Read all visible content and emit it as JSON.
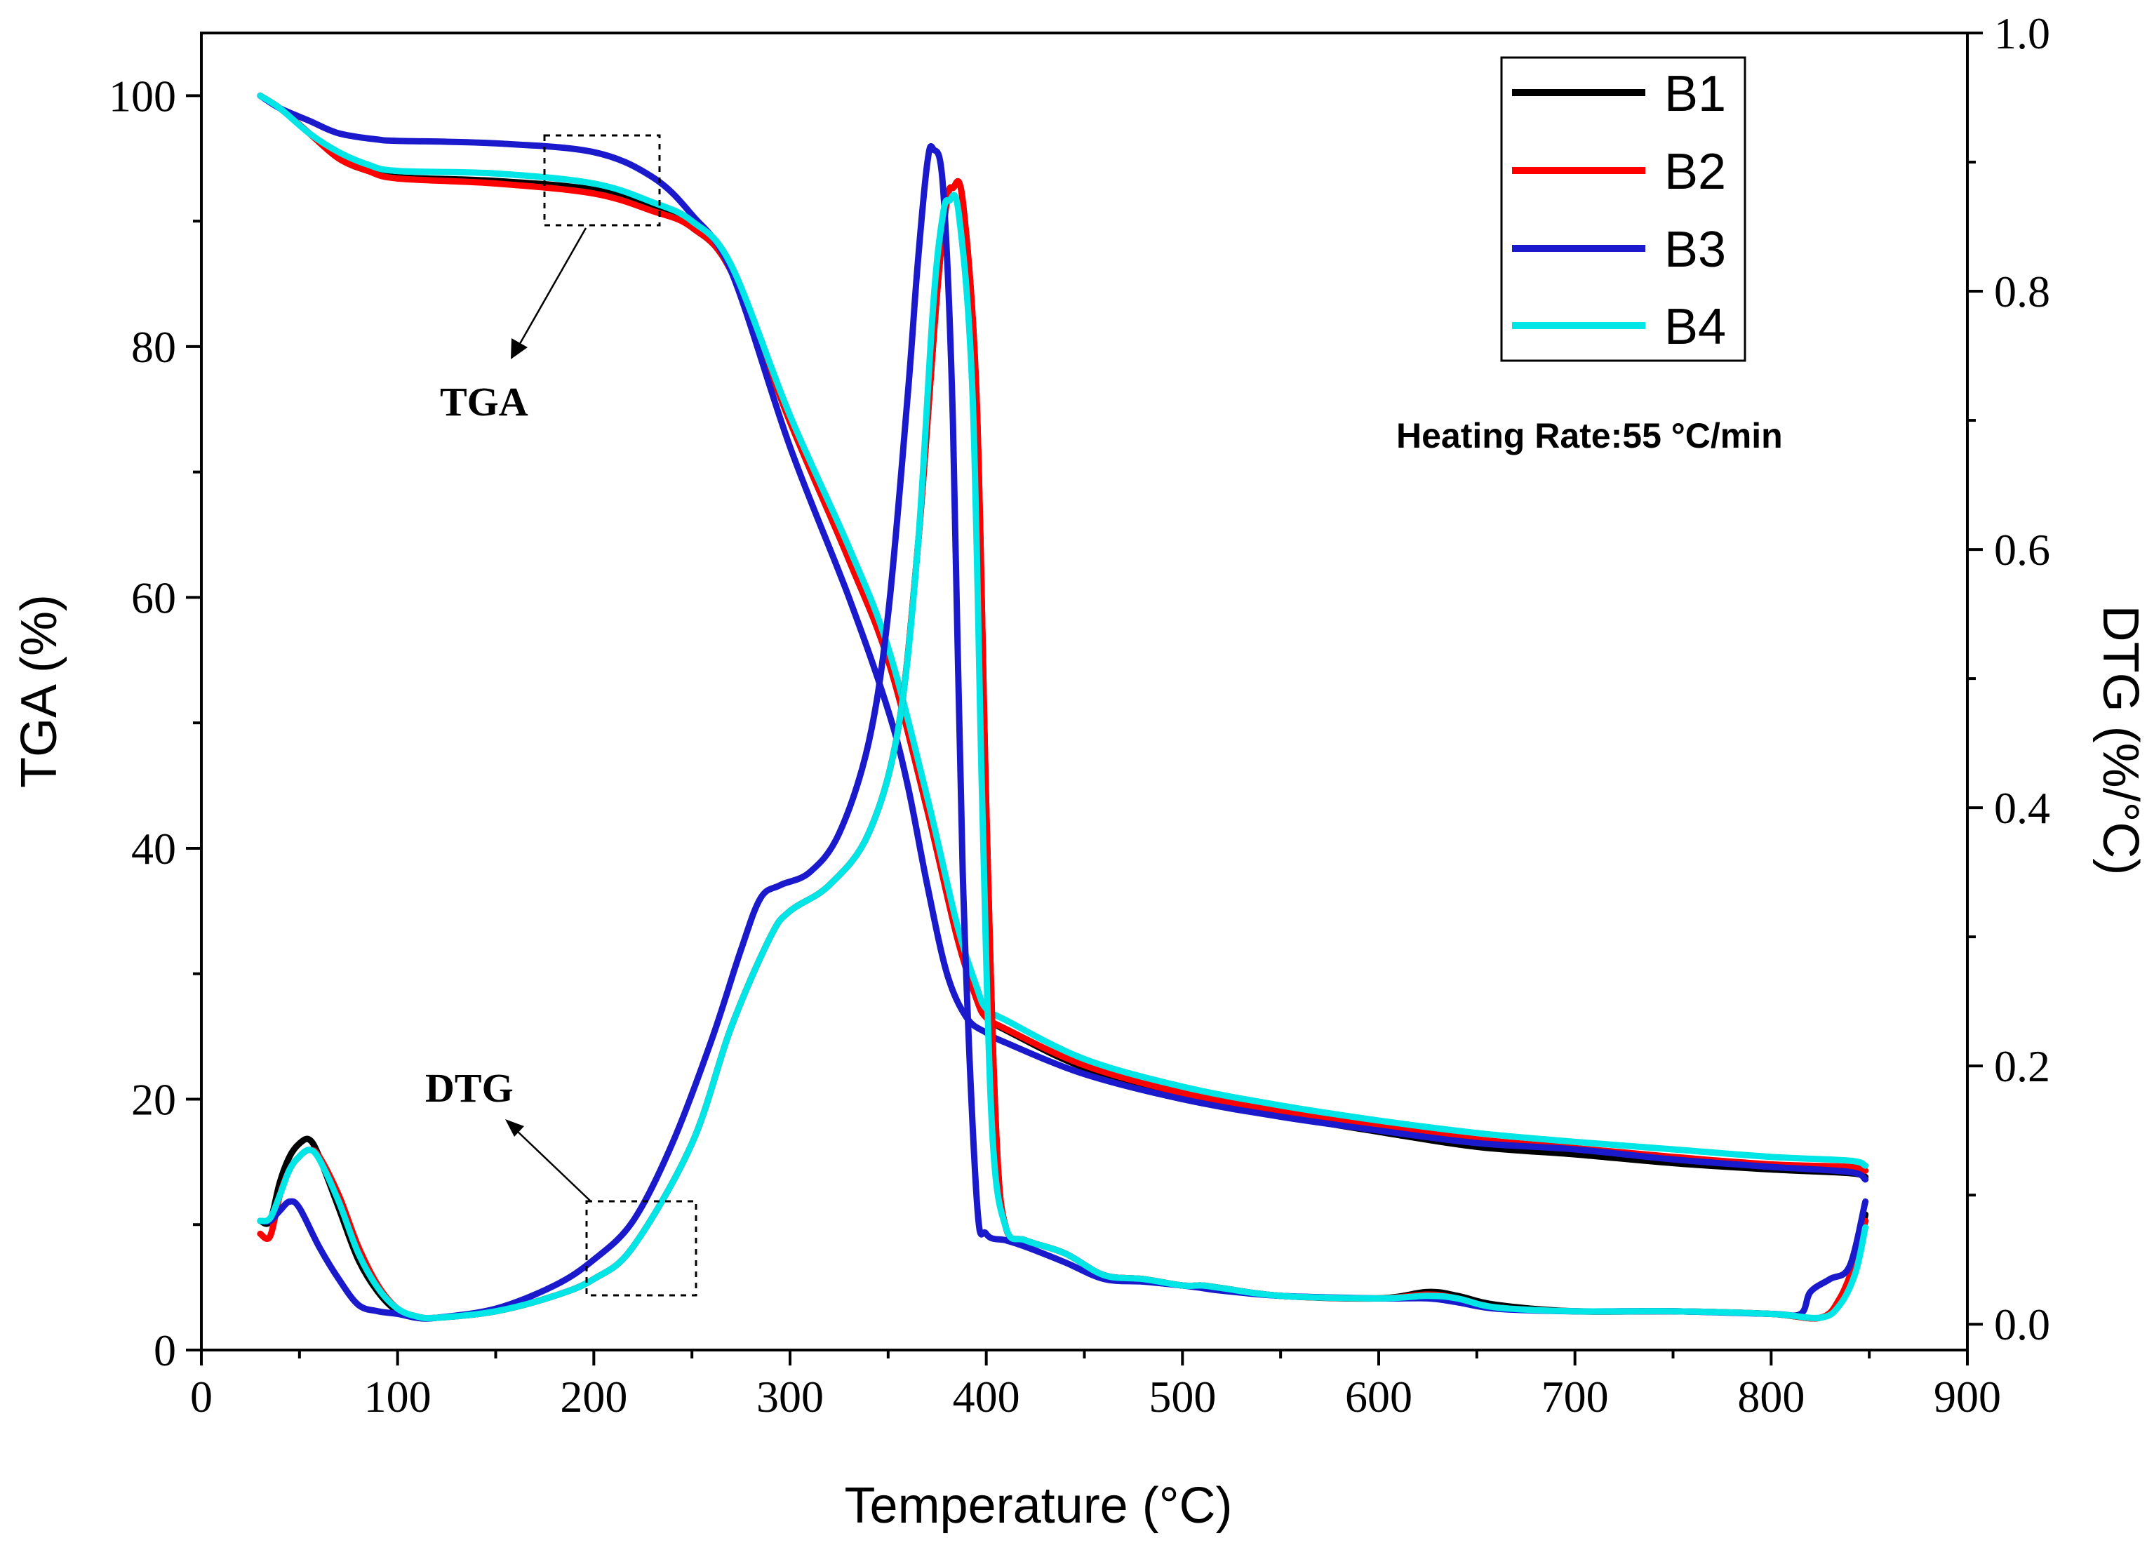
{
  "chart_data": {
    "type": "line",
    "title": "",
    "xlabel": "Temperature (°C)",
    "ylabel": "TGA (%)",
    "y2label": "DTG (%/°C)",
    "xlim": [
      0,
      900
    ],
    "ylim": [
      0,
      105
    ],
    "y2lim": [
      -0.02,
      1.0
    ],
    "x_ticks": [
      0,
      100,
      200,
      300,
      400,
      500,
      600,
      700,
      800,
      900
    ],
    "y_ticks": [
      0,
      20,
      40,
      60,
      80,
      100
    ],
    "y2_ticks": [
      "0.0",
      "0.2",
      "0.4",
      "0.6",
      "0.8",
      "1.0"
    ],
    "legend": [
      "B1",
      "B2",
      "B3",
      "B4"
    ],
    "legend_position": "top-right",
    "annotation_heating_rate": "Heating Rate:55 °C/min",
    "annotation_tga": "TGA",
    "annotation_dtg": "DTG",
    "colors": {
      "B1": "#000000",
      "B2": "#ff0000",
      "B3": "#1a1acc",
      "B4": "#00e5e5"
    },
    "series": [
      {
        "name": "B1",
        "curve": "TGA",
        "axis": "left",
        "x": [
          30,
          40,
          55,
          70,
          85,
          100,
          150,
          200,
          230,
          250,
          270,
          300,
          330,
          350,
          370,
          385,
          395,
          400,
          410,
          450,
          500,
          550,
          600,
          650,
          700,
          750,
          800,
          840,
          848
        ],
        "y": [
          100,
          99,
          97,
          95,
          94,
          93.5,
          93.2,
          92.5,
          91,
          89.5,
          86,
          74,
          63,
          55,
          43,
          33,
          28,
          26.5,
          25.5,
          22.5,
          20.2,
          18.7,
          17.4,
          16.2,
          15.6,
          14.9,
          14.4,
          14.1,
          13.8
        ]
      },
      {
        "name": "B2",
        "curve": "TGA",
        "axis": "left",
        "x": [
          30,
          40,
          55,
          70,
          85,
          100,
          150,
          200,
          230,
          250,
          270,
          300,
          330,
          350,
          370,
          385,
          395,
          400,
          410,
          450,
          500,
          550,
          600,
          650,
          700,
          750,
          800,
          840,
          848
        ],
        "y": [
          100,
          99,
          97,
          95,
          94,
          93.4,
          93,
          92.2,
          90.8,
          89.5,
          86,
          74,
          63,
          55,
          43,
          33,
          28,
          26.5,
          25.6,
          22.7,
          20.5,
          19.1,
          17.9,
          16.8,
          16.1,
          15.4,
          14.8,
          14.6,
          14.3
        ]
      },
      {
        "name": "B3",
        "curve": "TGA",
        "axis": "left",
        "x": [
          30,
          40,
          55,
          70,
          90,
          100,
          150,
          200,
          230,
          250,
          270,
          300,
          330,
          350,
          360,
          370,
          380,
          390,
          400,
          410,
          450,
          500,
          550,
          600,
          650,
          700,
          750,
          800,
          840,
          848
        ],
        "y": [
          100,
          99,
          98,
          97,
          96.5,
          96.4,
          96.2,
          95.5,
          93.5,
          90.5,
          86,
          72,
          60,
          51,
          45,
          37,
          30,
          26.5,
          25.3,
          24.5,
          22,
          20,
          18.6,
          17.5,
          16.5,
          16,
          15.2,
          14.6,
          14.2,
          13.6
        ]
      },
      {
        "name": "B4",
        "curve": "TGA",
        "axis": "left",
        "x": [
          30,
          40,
          55,
          70,
          85,
          100,
          150,
          200,
          230,
          250,
          270,
          300,
          330,
          350,
          370,
          385,
          395,
          400,
          410,
          450,
          500,
          550,
          600,
          650,
          700,
          750,
          800,
          840,
          848
        ],
        "y": [
          100,
          99,
          97,
          95.5,
          94.5,
          94,
          93.8,
          93,
          91.5,
          90,
          86.5,
          74.5,
          64,
          56,
          44,
          34,
          29,
          27.2,
          26.3,
          23.2,
          21,
          19.5,
          18.3,
          17.3,
          16.6,
          16,
          15.4,
          15.1,
          14.7
        ]
      },
      {
        "name": "B1",
        "curve": "DTG",
        "axis": "right",
        "x": [
          30,
          35,
          40,
          45,
          50,
          55,
          60,
          70,
          80,
          90,
          100,
          110,
          120,
          150,
          180,
          200,
          220,
          250,
          270,
          290,
          300,
          320,
          340,
          355,
          365,
          375,
          380,
          383,
          388,
          395,
          400,
          405,
          410,
          420,
          440,
          460,
          480,
          500,
          510,
          520,
          550,
          600,
          625,
          640,
          660,
          700,
          750,
          800,
          825,
          835,
          843,
          848
        ],
        "y": [
          0.08,
          0.08,
          0.11,
          0.13,
          0.14,
          0.143,
          0.13,
          0.09,
          0.05,
          0.025,
          0.01,
          0.005,
          0.005,
          0.01,
          0.022,
          0.035,
          0.06,
          0.14,
          0.23,
          0.3,
          0.32,
          0.34,
          0.38,
          0.46,
          0.6,
          0.8,
          0.87,
          0.88,
          0.87,
          0.72,
          0.4,
          0.15,
          0.075,
          0.065,
          0.055,
          0.038,
          0.035,
          0.03,
          0.03,
          0.028,
          0.022,
          0.02,
          0.025,
          0.022,
          0.015,
          0.01,
          0.01,
          0.008,
          0.005,
          0.02,
          0.05,
          0.085
        ]
      },
      {
        "name": "B2",
        "curve": "DTG",
        "axis": "right",
        "x": [
          30,
          35,
          40,
          45,
          50,
          55,
          60,
          70,
          80,
          90,
          100,
          110,
          120,
          150,
          180,
          200,
          220,
          250,
          270,
          290,
          300,
          320,
          340,
          355,
          365,
          375,
          380,
          383,
          388,
          395,
          400,
          405,
          410,
          420,
          440,
          460,
          480,
          500,
          510,
          520,
          550,
          600,
          625,
          640,
          660,
          700,
          750,
          800,
          825,
          835,
          843,
          848
        ],
        "y": [
          0.07,
          0.068,
          0.1,
          0.12,
          0.13,
          0.135,
          0.13,
          0.1,
          0.06,
          0.03,
          0.012,
          0.006,
          0.005,
          0.01,
          0.022,
          0.035,
          0.06,
          0.14,
          0.23,
          0.3,
          0.32,
          0.34,
          0.38,
          0.46,
          0.6,
          0.8,
          0.87,
          0.88,
          0.87,
          0.72,
          0.4,
          0.15,
          0.075,
          0.065,
          0.055,
          0.038,
          0.035,
          0.03,
          0.03,
          0.028,
          0.022,
          0.02,
          0.023,
          0.02,
          0.013,
          0.01,
          0.01,
          0.008,
          0.005,
          0.02,
          0.05,
          0.08
        ]
      },
      {
        "name": "B3",
        "curve": "DTG",
        "axis": "right",
        "x": [
          30,
          35,
          40,
          45,
          50,
          60,
          70,
          80,
          90,
          100,
          110,
          120,
          150,
          180,
          200,
          220,
          240,
          260,
          275,
          285,
          295,
          310,
          325,
          340,
          350,
          360,
          365,
          370,
          373,
          378,
          383,
          388,
          395,
          400,
          410,
          420,
          440,
          460,
          480,
          500,
          510,
          520,
          550,
          600,
          625,
          640,
          660,
          700,
          750,
          800,
          815,
          820,
          830,
          840,
          848
        ],
        "y": [
          0.08,
          0.08,
          0.088,
          0.095,
          0.09,
          0.06,
          0.035,
          0.015,
          0.01,
          0.008,
          0.005,
          0.005,
          0.012,
          0.03,
          0.05,
          0.08,
          0.14,
          0.22,
          0.29,
          0.33,
          0.34,
          0.35,
          0.38,
          0.45,
          0.55,
          0.72,
          0.82,
          0.9,
          0.91,
          0.88,
          0.7,
          0.35,
          0.1,
          0.07,
          0.065,
          0.06,
          0.048,
          0.035,
          0.033,
          0.03,
          0.028,
          0.026,
          0.022,
          0.02,
          0.02,
          0.017,
          0.012,
          0.01,
          0.01,
          0.008,
          0.008,
          0.025,
          0.035,
          0.045,
          0.095
        ]
      },
      {
        "name": "B4",
        "curve": "DTG",
        "axis": "right",
        "x": [
          30,
          35,
          40,
          45,
          50,
          55,
          60,
          70,
          80,
          90,
          100,
          110,
          120,
          150,
          180,
          200,
          220,
          250,
          270,
          290,
          300,
          320,
          340,
          355,
          365,
          373,
          378,
          381,
          386,
          393,
          398,
          403,
          410,
          420,
          440,
          460,
          480,
          500,
          510,
          520,
          550,
          600,
          625,
          640,
          660,
          700,
          750,
          800,
          825,
          835,
          843,
          848
        ],
        "y": [
          0.08,
          0.082,
          0.1,
          0.12,
          0.13,
          0.135,
          0.128,
          0.095,
          0.055,
          0.028,
          0.012,
          0.006,
          0.005,
          0.01,
          0.022,
          0.035,
          0.06,
          0.14,
          0.23,
          0.3,
          0.32,
          0.34,
          0.38,
          0.46,
          0.6,
          0.79,
          0.86,
          0.87,
          0.86,
          0.72,
          0.4,
          0.15,
          0.075,
          0.065,
          0.055,
          0.038,
          0.035,
          0.03,
          0.03,
          0.028,
          0.022,
          0.02,
          0.022,
          0.02,
          0.013,
          0.01,
          0.01,
          0.008,
          0.005,
          0.015,
          0.04,
          0.075
        ]
      }
    ]
  }
}
